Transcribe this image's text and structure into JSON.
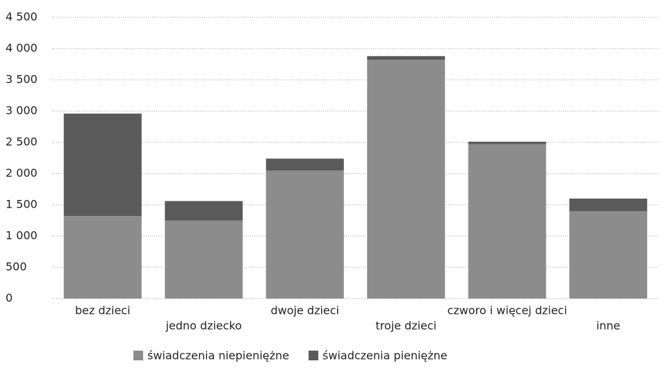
{
  "chart_data": {
    "type": "stacked_bar",
    "categories": [
      "bez dzieci",
      "jedno dziecko",
      "dwoje dzieci",
      "troje dzieci",
      "czworo i więcej dzieci",
      "inne"
    ],
    "series": [
      {
        "name": "świadczenia niepieniężne",
        "color": "#8c8c8c",
        "values": [
          1320,
          1250,
          2050,
          3820,
          2470,
          1400
        ]
      },
      {
        "name": "świadczenia pieniężne",
        "color": "#5a5a5a",
        "values": [
          1640,
          310,
          190,
          60,
          40,
          200
        ]
      }
    ],
    "ylim": [
      0,
      4500
    ],
    "yticks": [
      0,
      500,
      {
        "value": 1000,
        "label": "1 000"
      },
      {
        "value": 1500,
        "label": "1 500"
      },
      {
        "value": 2000,
        "label": "2 000"
      },
      {
        "value": 2500,
        "label": "2 500"
      },
      {
        "value": 3000,
        "label": "3 000"
      },
      {
        "value": 3500,
        "label": "3 500"
      },
      {
        "value": 4000,
        "label": "4 000"
      },
      {
        "value": 4500,
        "label": "4 500"
      }
    ],
    "grid": true,
    "legend": "bottom"
  }
}
